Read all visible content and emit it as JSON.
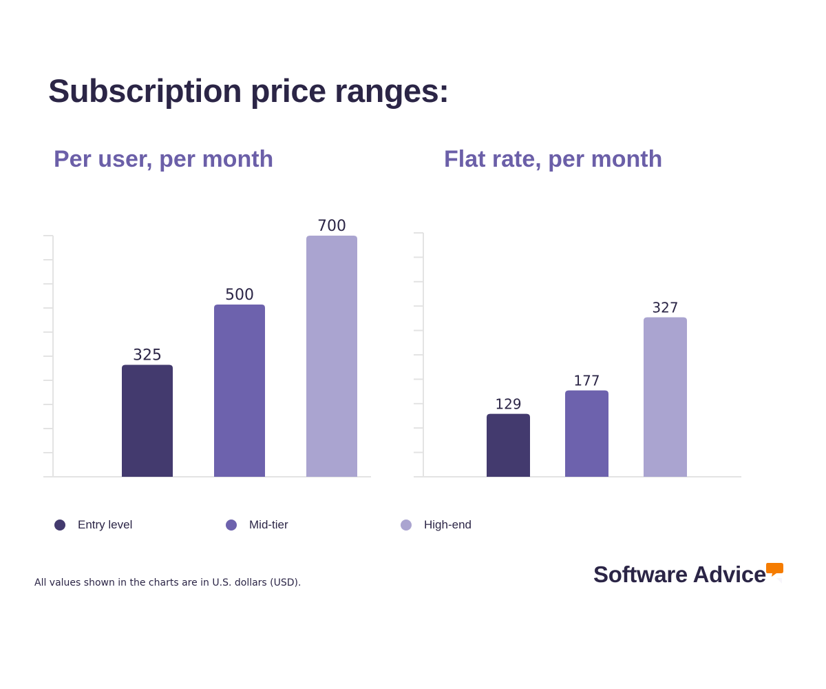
{
  "title": "Subscription price ranges:",
  "colors": {
    "entry": "#433a6e",
    "mid": "#6d62ad",
    "high": "#aaa4d0",
    "axis": "#e3e3e3",
    "brand_accent": "#f57c00"
  },
  "legend": [
    {
      "label": "Entry level",
      "color": "#433a6e"
    },
    {
      "label": "Mid-tier",
      "color": "#6d62ad"
    },
    {
      "label": "High-end",
      "color": "#aaa4d0"
    }
  ],
  "footnote": "All values shown in the charts are in U.S. dollars (USD).",
  "brand": {
    "name": "Software Advice",
    "icon": "speech-bubble-icon"
  },
  "chart_data": [
    {
      "type": "bar",
      "title": "Per user, per month",
      "categories": [
        "Entry level",
        "Mid-tier",
        "High-end"
      ],
      "values": [
        325,
        500,
        700
      ],
      "data_labels": [
        "325",
        "500",
        "700"
      ],
      "ylim": [
        0,
        700
      ],
      "grid": false,
      "xlabel": "",
      "ylabel": ""
    },
    {
      "type": "bar",
      "title": "Flat rate, per month",
      "categories": [
        "Entry level",
        "Mid-tier",
        "High-end"
      ],
      "values": [
        129,
        177,
        327
      ],
      "data_labels": [
        "129",
        "177",
        "327"
      ],
      "ylim": [
        0,
        500
      ],
      "grid": false,
      "xlabel": "",
      "ylabel": ""
    }
  ]
}
